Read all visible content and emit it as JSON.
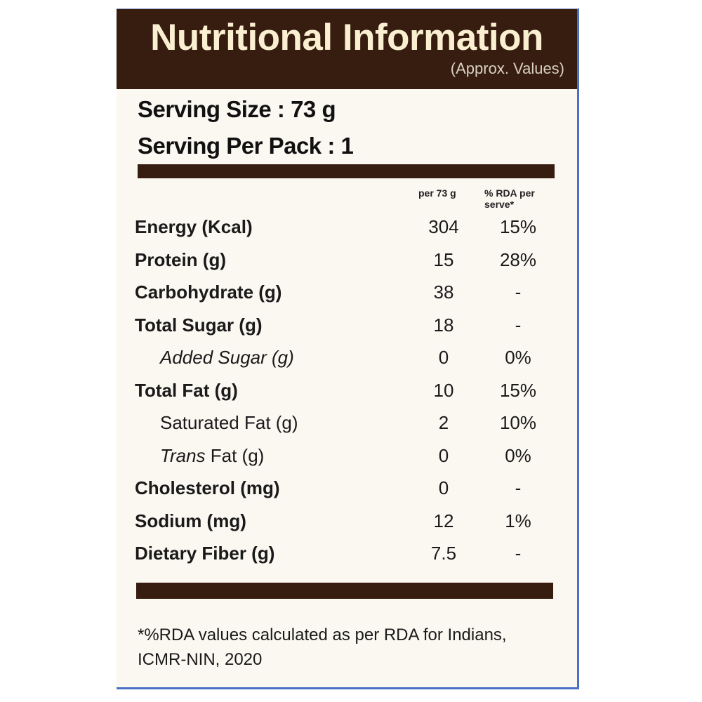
{
  "header": {
    "title": "Nutritional Information",
    "subtitle": "(Approx. Values)"
  },
  "serving": {
    "size": "Serving Size : 73 g",
    "per_pack": "Serving Per Pack : 1"
  },
  "columns": {
    "per": "per 73 g",
    "rda": "% RDA per serve*"
  },
  "rows": [
    {
      "label": "Energy (Kcal)",
      "value": "304",
      "rda": "15%",
      "style": "bold"
    },
    {
      "label": "Protein (g)",
      "value": "15",
      "rda": "28%",
      "style": "bold"
    },
    {
      "label": "Carbohydrate (g)",
      "value": "38",
      "rda": "-",
      "style": "bold"
    },
    {
      "label": "Total Sugar (g)",
      "value": "18",
      "rda": "-",
      "style": "bold"
    },
    {
      "label": "Added Sugar (g)",
      "value": "0",
      "rda": "0%",
      "style": "indent italic"
    },
    {
      "label": "Total Fat (g)",
      "value": "10",
      "rda": "15%",
      "style": "bold"
    },
    {
      "label": "Saturated Fat (g)",
      "value": "2",
      "rda": "10%",
      "style": "indent"
    },
    {
      "label_italic": "Trans",
      "label": " Fat (g)",
      "value": "0",
      "rda": "0%",
      "style": "indent"
    },
    {
      "label": "Cholesterol (mg)",
      "value": "0",
      "rda": "-",
      "style": "bold"
    },
    {
      "label": "Sodium (mg)",
      "value": "12",
      "rda": "1%",
      "style": "bold"
    },
    {
      "label": "Dietary Fiber (g)",
      "value": "7.5",
      "rda": "-",
      "style": "bold"
    }
  ],
  "footnote": "*%RDA values calculated as per RDA for Indians, ICMR-NIN, 2020",
  "colors": {
    "brown": "#371d10",
    "cream": "#fbefd2",
    "background": "#fbf8f2",
    "border": "#4a6fc4"
  }
}
